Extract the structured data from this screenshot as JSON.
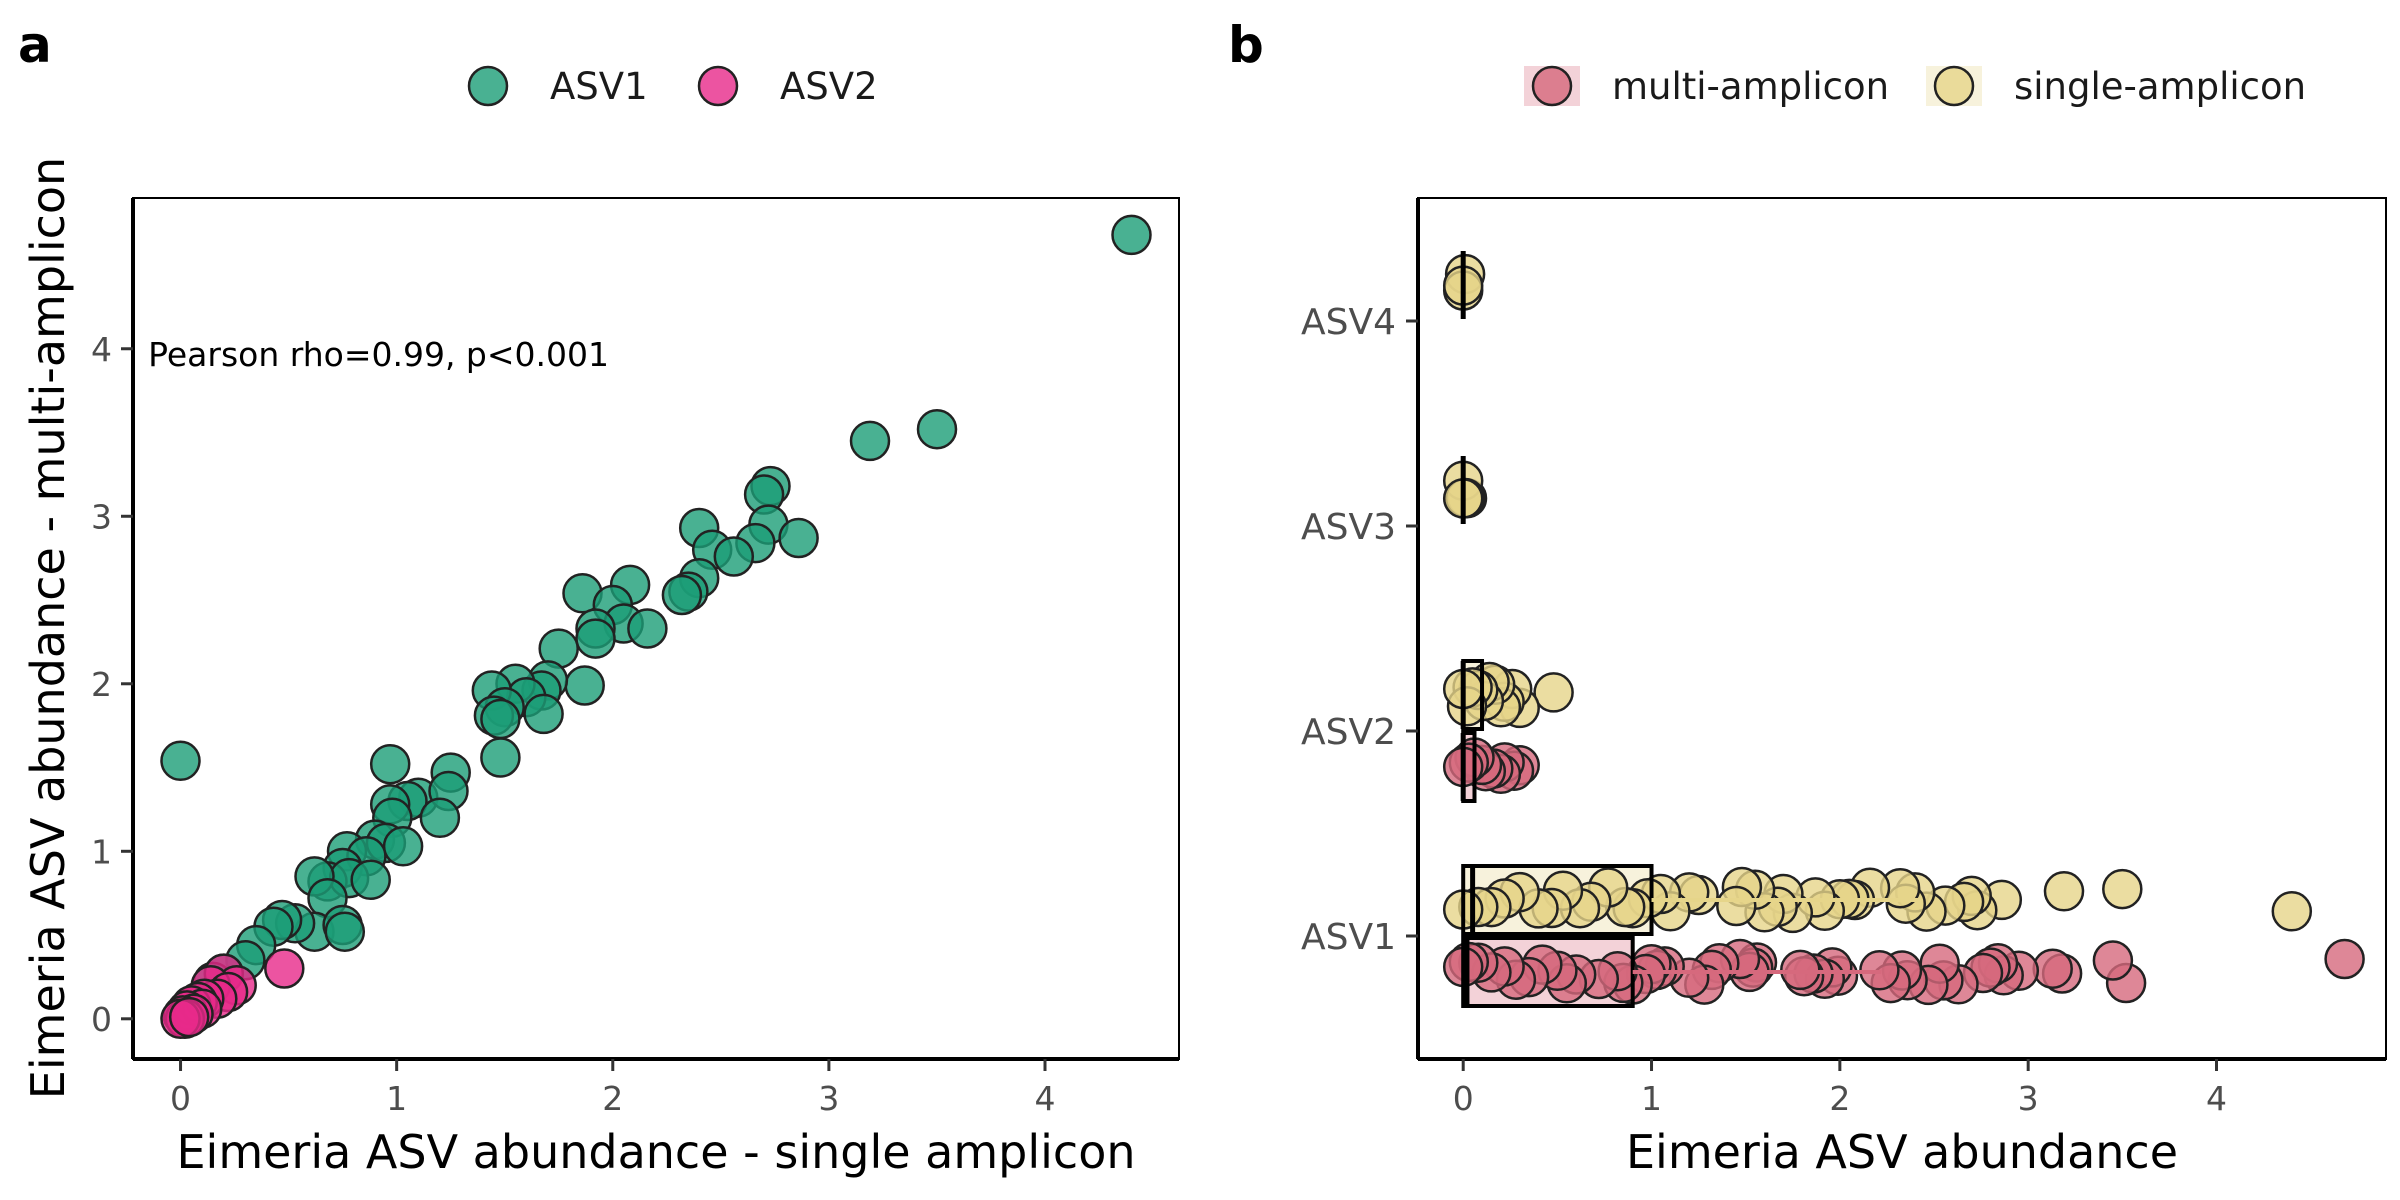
{
  "chart_data": [
    {
      "panel": "a",
      "type": "scatter",
      "xlabel": "Eimeria ASV abundance - single amplicon",
      "ylabel": "Eimeria ASV abundance - multi-amplicon",
      "xlim": [
        -0.22,
        4.62
      ],
      "ylim": [
        -0.24,
        4.9
      ],
      "xticks": [
        0,
        1,
        2,
        3,
        4
      ],
      "yticks": [
        0,
        1,
        2,
        3,
        4
      ],
      "grid": false,
      "legend": {
        "position": "top",
        "entries": [
          "ASV1",
          "ASV2"
        ]
      },
      "annotation": {
        "text": "Pearson rho=0.99, p<0.001",
        "x": -0.15,
        "y": 3.97
      },
      "series": [
        {
          "name": "ASV1",
          "color": "#1b9e77",
          "points": [
            [
              4.4,
              4.68
            ],
            [
              3.5,
              3.52
            ],
            [
              3.19,
              3.45
            ],
            [
              2.73,
              3.18
            ],
            [
              2.7,
              3.13
            ],
            [
              2.72,
              2.95
            ],
            [
              2.86,
              2.87
            ],
            [
              2.66,
              2.84
            ],
            [
              2.4,
              2.93
            ],
            [
              2.46,
              2.8
            ],
            [
              2.56,
              2.76
            ],
            [
              2.4,
              2.63
            ],
            [
              2.35,
              2.55
            ],
            [
              2.32,
              2.53
            ],
            [
              2.08,
              2.59
            ],
            [
              1.86,
              2.54
            ],
            [
              2.0,
              2.47
            ],
            [
              2.05,
              2.36
            ],
            [
              1.92,
              2.33
            ],
            [
              2.16,
              2.33
            ],
            [
              1.92,
              2.27
            ],
            [
              1.75,
              2.21
            ],
            [
              1.87,
              1.99
            ],
            [
              1.7,
              2.02
            ],
            [
              1.67,
              1.96
            ],
            [
              1.55,
              2.0
            ],
            [
              1.6,
              1.92
            ],
            [
              1.44,
              1.96
            ],
            [
              1.5,
              1.86
            ],
            [
              1.45,
              1.81
            ],
            [
              1.68,
              1.82
            ],
            [
              1.48,
              1.79
            ],
            [
              1.48,
              1.56
            ],
            [
              0.0,
              1.54
            ],
            [
              0.97,
              1.52
            ],
            [
              1.25,
              1.47
            ],
            [
              1.1,
              1.32
            ],
            [
              1.05,
              1.3
            ],
            [
              1.24,
              1.36
            ],
            [
              1.2,
              1.2
            ],
            [
              0.97,
              1.28
            ],
            [
              0.98,
              1.2
            ],
            [
              0.9,
              1.07
            ],
            [
              0.95,
              1.05
            ],
            [
              1.03,
              1.03
            ],
            [
              0.77,
              1.0
            ],
            [
              0.86,
              0.97
            ],
            [
              0.75,
              0.9
            ],
            [
              0.68,
              0.82
            ],
            [
              0.78,
              0.84
            ],
            [
              0.88,
              0.83
            ],
            [
              0.62,
              0.85
            ],
            [
              0.68,
              0.72
            ],
            [
              0.62,
              0.52
            ],
            [
              0.53,
              0.57
            ],
            [
              0.75,
              0.56
            ],
            [
              0.76,
              0.52
            ],
            [
              0.47,
              0.59
            ],
            [
              0.43,
              0.55
            ],
            [
              0.35,
              0.44
            ],
            [
              0.3,
              0.35
            ],
            [
              0.2,
              0.27
            ],
            [
              0.15,
              0.22
            ]
          ]
        },
        {
          "name": "ASV2",
          "color": "#e7298a",
          "points": [
            [
              0.48,
              0.3
            ],
            [
              0.2,
              0.27
            ],
            [
              0.26,
              0.2
            ],
            [
              0.14,
              0.2
            ],
            [
              0.22,
              0.16
            ],
            [
              0.17,
              0.12
            ],
            [
              0.11,
              0.12
            ],
            [
              0.08,
              0.1
            ],
            [
              0.05,
              0.08
            ],
            [
              0.1,
              0.06
            ],
            [
              0.03,
              0.05
            ],
            [
              0.06,
              0.03
            ],
            [
              0.01,
              0.02
            ],
            [
              0.02,
              0.0
            ],
            [
              0.0,
              0.0
            ],
            [
              0.04,
              0.01
            ]
          ]
        }
      ]
    },
    {
      "panel": "b",
      "type": "boxplot",
      "orientation": "horizontal",
      "xlabel": "Eimeria ASV abundance",
      "ylabel": "",
      "categories": [
        "ASV1",
        "ASV2",
        "ASV3",
        "ASV4"
      ],
      "xlim": [
        -0.24,
        4.9
      ],
      "xticks": [
        0,
        1,
        2,
        3,
        4
      ],
      "grid": false,
      "legend": {
        "position": "top",
        "entries": [
          "multi-amplicon",
          "single-amplicon"
        ]
      },
      "groups": [
        {
          "name": "multi-amplicon",
          "color": "#d6697d",
          "boxes": {
            "ASV1": {
              "q1": 0.0,
              "median": 0.02,
              "q3": 0.9,
              "whisker_high": 2.22
            },
            "ASV2": {
              "q1": 0.0,
              "median": 0.0,
              "q3": 0.06,
              "whisker_high": 0.06
            }
          },
          "points": {
            "ASV1": [
              4.68,
              3.52,
              3.45,
              3.18,
              3.13,
              2.95,
              2.87,
              2.84,
              2.8,
              2.76,
              2.63,
              2.55,
              2.53,
              2.47,
              2.36,
              2.33,
              2.27,
              2.21,
              1.99,
              1.96,
              1.92,
              1.86,
              1.81,
              1.79,
              1.56,
              1.54,
              1.52,
              1.47,
              1.36,
              1.32,
              1.28,
              1.2,
              1.07,
              1.03,
              1.0,
              0.97,
              0.9,
              0.85,
              0.82,
              0.72,
              0.6,
              0.55,
              0.5,
              0.42,
              0.35,
              0.28,
              0.22,
              0.15,
              0.08,
              0.03,
              0.0
            ],
            "ASV2": [
              0.3,
              0.27,
              0.22,
              0.2,
              0.16,
              0.12,
              0.1,
              0.06,
              0.03,
              0.0
            ]
          }
        },
        {
          "name": "single-amplicon",
          "color": "#e6d58a",
          "boxes": {
            "ASV1": {
              "q1": 0.0,
              "median": 0.05,
              "q3": 1.0,
              "whisker_high": 2.42
            },
            "ASV2": {
              "q1": 0.0,
              "median": 0.0,
              "q3": 0.1,
              "whisker_high": 0.1
            },
            "ASV3": {
              "q1": 0.0,
              "median": 0.0,
              "q3": 0.0,
              "whisker_high": 0.0
            },
            "ASV4": {
              "q1": 0.0,
              "median": 0.0,
              "q3": 0.0,
              "whisker_high": 0.0
            }
          },
          "points": {
            "ASV1": [
              4.4,
              3.5,
              3.19,
              2.86,
              2.73,
              2.7,
              2.66,
              2.56,
              2.46,
              2.4,
              2.35,
              2.32,
              2.16,
              2.08,
              2.05,
              2.0,
              1.92,
              1.87,
              1.75,
              1.7,
              1.67,
              1.6,
              1.55,
              1.48,
              1.45,
              1.25,
              1.2,
              1.1,
              1.05,
              0.98,
              0.9,
              0.86,
              0.77,
              0.68,
              0.62,
              0.53,
              0.47,
              0.4,
              0.3,
              0.22,
              0.15,
              0.08,
              0.0
            ],
            "ASV2": [
              0.48,
              0.3,
              0.26,
              0.22,
              0.2,
              0.17,
              0.14,
              0.11,
              0.08,
              0.05,
              0.02,
              0.0
            ],
            "ASV3": [
              0.02,
              0.0,
              0.01,
              0.0
            ],
            "ASV4": [
              0.01,
              0.0,
              0.0
            ]
          }
        }
      ]
    }
  ]
}
